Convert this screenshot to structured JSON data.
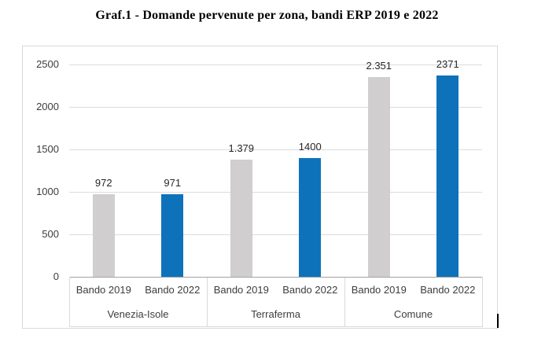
{
  "page": {
    "title": "Graf.1 - Domande pervenute per zona, bandi ERP 2019 e 2022"
  },
  "chart_data": {
    "type": "bar",
    "title": "Graf.1 - Domande pervenute per zona, bandi ERP 2019 e 2022",
    "ylim": [
      0,
      2500
    ],
    "y_ticks": [
      0,
      500,
      1000,
      1500,
      2000,
      2500
    ],
    "y_tick_labels": [
      "0",
      "500",
      "1000",
      "1500",
      "2000",
      "2500"
    ],
    "grid": true,
    "legend_position": "none",
    "series_colors": {
      "Bando 2019": "#d0cece",
      "Bando 2022": "#0e72ba"
    },
    "groups": [
      {
        "zone": "Venezia-Isole",
        "bars": [
          {
            "series": "Bando 2019",
            "value": 972,
            "value_label": "972"
          },
          {
            "series": "Bando 2022",
            "value": 971,
            "value_label": "971"
          }
        ]
      },
      {
        "zone": "Terraferma",
        "bars": [
          {
            "series": "Bando 2019",
            "value": 1379,
            "value_label": "1.379"
          },
          {
            "series": "Bando 2022",
            "value": 1400,
            "value_label": "1400"
          }
        ]
      },
      {
        "zone": "Comune",
        "bars": [
          {
            "series": "Bando 2019",
            "value": 2351,
            "value_label": "2.351"
          },
          {
            "series": "Bando 2022",
            "value": 2371,
            "value_label": "2371"
          }
        ]
      }
    ]
  }
}
